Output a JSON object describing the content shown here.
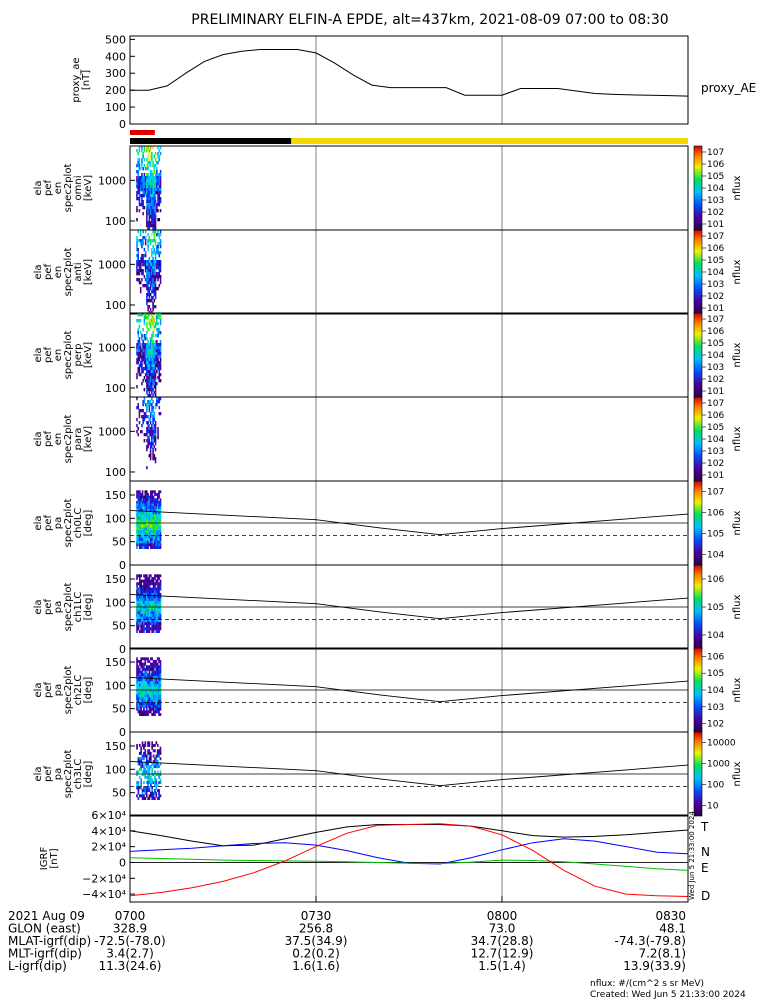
{
  "title": "PRELIMINARY ELFIN-A EPDE, alt=437km, 2021-08-09 07:00 to 08:30",
  "created": "Created: Wed Jun  5 21:33:00 2024",
  "units_note": "nflux: #/(cm^2 s sr MeV)",
  "side_stamp": "Wed Jun  5 21:33:00 2024",
  "colors": {
    "state_bar_red": "#e00000",
    "state_bar_black": "#000000",
    "state_bar_yellow": "#f5d800",
    "T": "#000000",
    "N": "#0000ff",
    "E": "#00c000",
    "D": "#ff0000"
  },
  "panels": {
    "proxy_ae": {
      "ylabel_lines": [
        "proxy_ae",
        "[nT]"
      ],
      "legend": "proxy_AE",
      "yticks": [
        "0",
        "100",
        "200",
        "300",
        "400",
        "500"
      ]
    },
    "spec": [
      {
        "ylabel_lines": [
          "ela",
          "pef",
          "en",
          "spec2plot",
          "omni",
          "[keV]"
        ],
        "yticks": [
          "100",
          "1000"
        ],
        "cb_ticks": [
          "101",
          "102",
          "103",
          "104",
          "105",
          "106",
          "107"
        ],
        "cb_label": "nflux"
      },
      {
        "ylabel_lines": [
          "ela",
          "pef",
          "en",
          "spec2plot",
          "anti",
          "[keV]"
        ],
        "yticks": [
          "100",
          "1000"
        ],
        "cb_ticks": [
          "101",
          "102",
          "103",
          "104",
          "105",
          "106",
          "107"
        ],
        "cb_label": "nflux"
      },
      {
        "ylabel_lines": [
          "ela",
          "pef",
          "en",
          "spec2plot",
          "perp",
          "[keV]"
        ],
        "yticks": [
          "100",
          "1000"
        ],
        "cb_ticks": [
          "101",
          "102",
          "103",
          "104",
          "105",
          "106",
          "107"
        ],
        "cb_label": "nflux"
      },
      {
        "ylabel_lines": [
          "ela",
          "pef",
          "en",
          "spec2plot",
          "para",
          "[keV]"
        ],
        "yticks": [
          "100",
          "1000"
        ],
        "cb_ticks": [
          "101",
          "102",
          "103",
          "104",
          "105",
          "106",
          "107"
        ],
        "cb_label": "nflux"
      }
    ],
    "pa": [
      {
        "ylabel_lines": [
          "ela",
          "pef",
          "pa",
          "spec2plot",
          "ch0LC",
          "[deg]"
        ],
        "yticks": [
          "0",
          "50",
          "100",
          "150"
        ],
        "cb_ticks": [
          "104",
          "105",
          "106",
          "107"
        ],
        "cb_label": "nflux"
      },
      {
        "ylabel_lines": [
          "ela",
          "pef",
          "pa",
          "spec2plot",
          "ch1LC",
          "[deg]"
        ],
        "yticks": [
          "0",
          "50",
          "100",
          "150"
        ],
        "cb_ticks": [
          "104",
          "105",
          "106"
        ],
        "cb_label": "nflux"
      },
      {
        "ylabel_lines": [
          "ela",
          "pef",
          "pa",
          "spec2plot",
          "ch2LC",
          "[deg]"
        ],
        "yticks": [
          "0",
          "50",
          "100",
          "150"
        ],
        "cb_ticks": [
          "102",
          "103",
          "104",
          "105",
          "106"
        ],
        "cb_label": "nflux"
      },
      {
        "ylabel_lines": [
          "ela",
          "pef",
          "pa",
          "spec2plot",
          "ch3LC",
          "[deg]"
        ],
        "yticks": [
          "50",
          "100",
          "150"
        ],
        "cb_ticks": [
          "10",
          "100",
          "1000",
          "10000"
        ],
        "cb_label": "nflux"
      }
    ],
    "igrf": {
      "ylabel_lines": [
        "IGRF",
        "[nT]"
      ],
      "yticks": [
        "−4×10⁴",
        "−2×10⁴",
        "0",
        "2×10⁴",
        "4×10⁴",
        "6×10⁴"
      ],
      "legend": [
        "T",
        "N",
        "E",
        "D"
      ]
    }
  },
  "xaxis": {
    "rows": [
      [
        "2021 Aug 09",
        "0700",
        "0730",
        "0800",
        "0830"
      ],
      [
        "GLON (east)",
        "328.9",
        "256.8",
        "73.0",
        "48.1"
      ],
      [
        "MLAT-igrf(dip)",
        "-72.5(-78.0)",
        "37.5(34.9)",
        "34.7(28.8)",
        "-74.3(-79.8)"
      ],
      [
        "MLT-igrf(dip)",
        "3.4(2.7)",
        "0.2(0.2)",
        "12.7(12.9)",
        "7.2(8.1)"
      ],
      [
        "L-igrf(dip)",
        "11.3(24.6)",
        "1.6(1.6)",
        "1.5(1.4)",
        "13.9(33.9)"
      ]
    ]
  },
  "chart_data": [
    {
      "type": "line",
      "name": "proxy_AE",
      "x": [
        "07:00",
        "07:03",
        "07:06",
        "07:09",
        "07:12",
        "07:15",
        "07:18",
        "07:21",
        "07:24",
        "07:27",
        "07:30",
        "07:33",
        "07:36",
        "07:39",
        "07:42",
        "07:45",
        "07:48",
        "07:51",
        "07:54",
        "07:57",
        "08:00",
        "08:03",
        "08:06",
        "08:09",
        "08:12",
        "08:15",
        "08:18",
        "08:21",
        "08:24",
        "08:27",
        "08:30"
      ],
      "values": [
        200,
        200,
        225,
        300,
        370,
        410,
        430,
        440,
        440,
        440,
        420,
        360,
        290,
        230,
        215,
        215,
        215,
        215,
        170,
        170,
        170,
        210,
        210,
        210,
        195,
        180,
        175,
        172,
        170,
        168,
        165
      ],
      "ylim": [
        0,
        520
      ]
    },
    {
      "type": "bar",
      "name": "state_bar",
      "segments": [
        {
          "color": "red",
          "start": "07:00",
          "end": "07:04"
        },
        {
          "color": "black",
          "start": "07:00",
          "end": "07:26"
        },
        {
          "color": "yellow",
          "start": "07:26",
          "end": "08:30"
        }
      ]
    },
    {
      "type": "heatmap",
      "name": "ela_pef_en_spec2plot_omni",
      "x_range": [
        "07:01",
        "07:05"
      ],
      "y_range_keV": [
        60,
        7000
      ],
      "log_y": true
    },
    {
      "type": "heatmap",
      "name": "ela_pef_en_spec2plot_anti",
      "x_range": [
        "07:01",
        "07:05"
      ],
      "y_range_keV": [
        60,
        7000
      ],
      "log_y": true
    },
    {
      "type": "heatmap",
      "name": "ela_pef_en_spec2plot_perp",
      "x_range": [
        "07:01",
        "07:05"
      ],
      "y_range_keV": [
        60,
        7000
      ],
      "log_y": true
    },
    {
      "type": "heatmap",
      "name": "ela_pef_en_spec2plot_para",
      "x_range": [
        "07:01",
        "07:05"
      ],
      "y_range_keV": [
        60,
        7000
      ],
      "log_y": true
    },
    {
      "type": "line",
      "name": "pa_loss_cone",
      "x": [
        "07:00",
        "07:30",
        "07:40",
        "07:50",
        "08:00",
        "08:30"
      ],
      "solid_values": [
        117,
        97,
        80,
        65,
        78,
        109
      ],
      "reference_solid": 90,
      "reference_dashed": 63,
      "ylim": [
        0,
        180
      ]
    },
    {
      "type": "line",
      "name": "IGRF",
      "x": [
        "07:00",
        "07:05",
        "07:10",
        "07:15",
        "07:20",
        "07:25",
        "07:30",
        "07:35",
        "07:40",
        "07:45",
        "07:50",
        "07:55",
        "08:00",
        "08:05",
        "08:10",
        "08:15",
        "08:20",
        "08:25",
        "08:30"
      ],
      "series": [
        {
          "name": "T",
          "values": [
            40000,
            34000,
            27000,
            21000,
            22000,
            30000,
            38000,
            45000,
            48000,
            48000,
            48000,
            46000,
            40000,
            34000,
            32000,
            33000,
            35000,
            38000,
            41000
          ]
        },
        {
          "name": "N",
          "values": [
            14000,
            16000,
            18000,
            21000,
            24000,
            25000,
            22000,
            15000,
            6000,
            -1000,
            -2000,
            6000,
            16000,
            25000,
            30000,
            27000,
            20000,
            13000,
            11000
          ]
        },
        {
          "name": "E",
          "values": [
            6000,
            5000,
            4000,
            3000,
            2500,
            2000,
            1500,
            1000,
            0,
            -1000,
            -1500,
            500,
            3000,
            2500,
            1000,
            -2000,
            -5000,
            -8000,
            -10000
          ]
        },
        {
          "name": "D",
          "values": [
            -42000,
            -38000,
            -32000,
            -24000,
            -13000,
            2000,
            20000,
            37000,
            47000,
            48000,
            49000,
            46000,
            35000,
            15000,
            -10000,
            -30000,
            -40000,
            -42000,
            -43000
          ]
        }
      ],
      "ylim": [
        -50000,
        60000
      ]
    }
  ]
}
